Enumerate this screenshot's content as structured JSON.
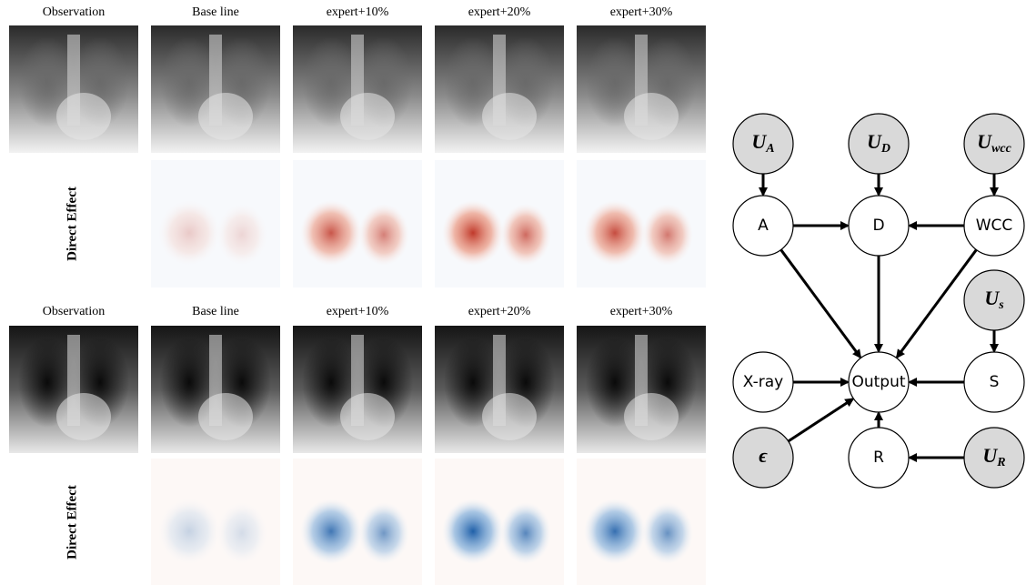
{
  "figure": {
    "panels": [
      {
        "column_labels": [
          "Observation",
          "Base line",
          "expert+10%",
          "expert+20%",
          "expert+30%"
        ],
        "row_label": "Direct Effect"
      },
      {
        "column_labels": [
          "Observation",
          "Base line",
          "expert+10%",
          "expert+20%",
          "expert+30%"
        ],
        "row_label": "Direct Effect"
      }
    ]
  },
  "graph": {
    "nodes": [
      {
        "label": "U",
        "sub": "A"
      },
      {
        "label": "U",
        "sub": "D"
      },
      {
        "label": "U",
        "sub": "wcc"
      },
      {
        "label": "A"
      },
      {
        "label": "D"
      },
      {
        "label": "WCC"
      },
      {
        "label": "U",
        "sub": "s"
      },
      {
        "label": "X-ray"
      },
      {
        "label": "Output"
      },
      {
        "label": "S"
      },
      {
        "label": "ϵ"
      },
      {
        "label": "R"
      },
      {
        "label": "U",
        "sub": "R"
      }
    ]
  }
}
